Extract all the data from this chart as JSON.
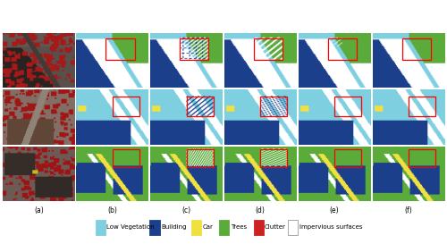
{
  "figure_width": 5.0,
  "figure_height": 2.73,
  "dpi": 100,
  "col_labels": [
    "(a)",
    "(b)",
    "(c)",
    "(d)",
    "(e)",
    "(f)"
  ],
  "legend_items": [
    {
      "label": "Low Vegetation",
      "color": "#7ECFE0"
    },
    {
      "label": "Building",
      "color": "#1C3F8C"
    },
    {
      "label": "Car",
      "color": "#F0E040"
    },
    {
      "label": "Trees",
      "color": "#5AAB3A"
    },
    {
      "label": "Clutter",
      "color": "#CC2222"
    },
    {
      "label": "Impervious surfaces",
      "color": "#FFFFFF"
    }
  ],
  "legend_edge_color": "#999999",
  "background_color": "#FFFFFF",
  "label_fontsize": 5.5,
  "legend_fontsize": 5.0
}
